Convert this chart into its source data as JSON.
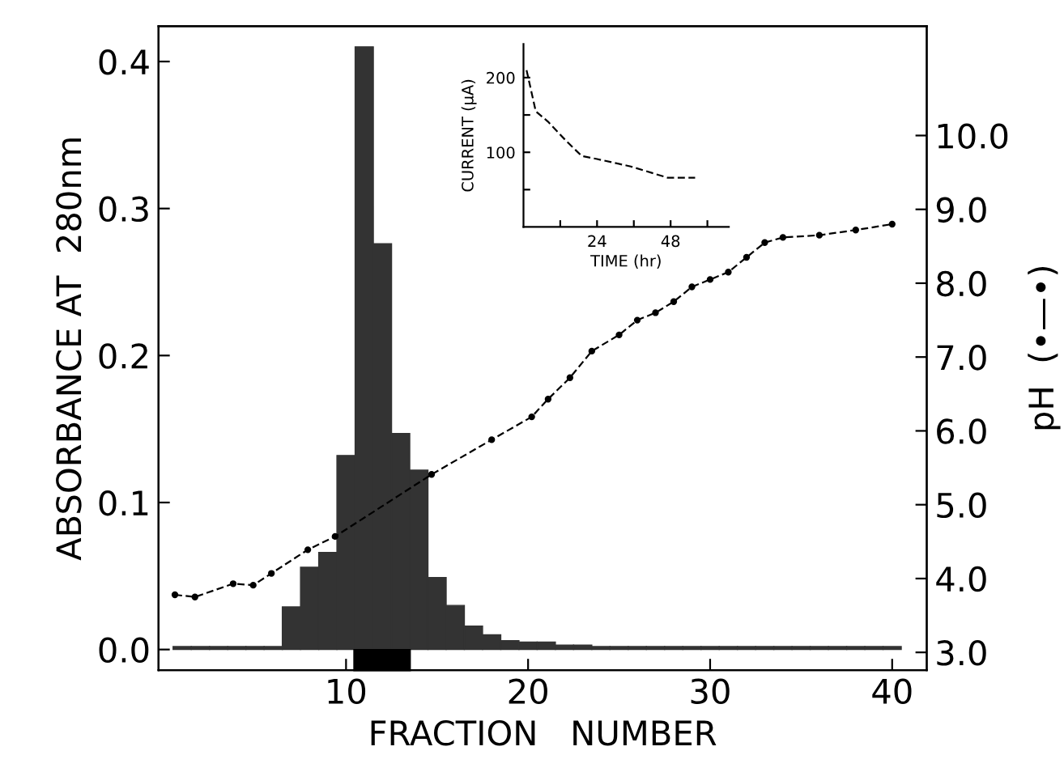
{
  "chart_data": [
    {
      "type": "bar",
      "xlabel": "FRACTION   NUMBER",
      "ylabel": "ABSORBANCE AT  280nm",
      "y2label": "pH  (•—•)",
      "x": [
        1,
        2,
        3,
        4,
        5,
        6,
        7,
        8,
        9,
        10,
        11,
        12,
        13,
        14,
        15,
        16,
        17,
        18,
        19,
        20,
        21,
        22,
        23,
        24,
        25,
        26,
        27,
        28,
        29,
        30,
        31,
        32,
        33,
        34,
        35,
        36,
        37,
        38,
        39,
        40
      ],
      "series": [
        {
          "type": "bar",
          "color": "#333333",
          "values": [
            0.002,
            0.002,
            0.002,
            0.002,
            0.002,
            0.002,
            0.029,
            0.056,
            0.066,
            0.132,
            0.41,
            0.276,
            0.147,
            0.122,
            0.049,
            0.03,
            0.016,
            0.01,
            0.006,
            0.005,
            0.005,
            0.003,
            0.003,
            0.002,
            0.002,
            0.002,
            0.002,
            0.002,
            0.002,
            0.002,
            0.002,
            0.002,
            0.002,
            0.002,
            0.002,
            0.002,
            0.002,
            0.002,
            0.002,
            0.002
          ]
        },
        {
          "type": "line",
          "axis": "y2",
          "color": "#000000",
          "marker": "circle",
          "line_style": "dashed",
          "x": [
            0.6,
            1.7,
            3.8,
            4.9,
            5.9,
            7.9,
            9.4,
            14.7,
            18.0,
            20.2,
            21.1,
            22.3,
            23.5,
            25,
            26,
            27,
            28,
            29,
            30,
            31,
            32,
            33,
            34,
            36,
            38,
            40
          ],
          "values": [
            3.78,
            3.75,
            3.93,
            3.91,
            4.07,
            4.39,
            4.57,
            5.41,
            5.88,
            6.19,
            6.43,
            6.72,
            7.08,
            7.3,
            7.5,
            7.6,
            7.75,
            7.95,
            8.05,
            8.15,
            8.35,
            8.55,
            8.62,
            8.65,
            8.72,
            8.8
          ]
        }
      ],
      "xlim": [
        -0.3,
        41.9
      ],
      "xticks": [
        10,
        20,
        30,
        40
      ],
      "ylim": [
        -0.014,
        0.424
      ],
      "yticks": [
        {
          "value": 0,
          "label": "0.0"
        },
        0.1,
        0.2,
        0.3,
        0.4
      ],
      "y2lim": [
        2.76,
        11.48
      ],
      "y2ticks": [
        {
          "value": 3,
          "label": "3.0"
        },
        {
          "value": 4,
          "label": "4.0"
        },
        {
          "value": 5,
          "label": "5.0"
        },
        {
          "value": 6,
          "label": "6.0"
        },
        {
          "value": 7,
          "label": "7.0"
        },
        {
          "value": 8,
          "label": "8.0"
        },
        {
          "value": 9,
          "label": "9.0"
        },
        {
          "value": 10,
          "label": "10.0"
        }
      ],
      "grid": false,
      "legend": false
    },
    {
      "type": "line",
      "xlabel": "TIME (hr)",
      "ylabel": "CURRENT (μA)",
      "series": [
        {
          "color": "#000000",
          "line_style": "dashed",
          "x": [
            1,
            4,
            8,
            14,
            19,
            24,
            35,
            47,
            56
          ],
          "values": [
            210,
            155,
            141,
            115,
            95,
            91,
            81,
            66,
            66
          ]
        }
      ],
      "xlim": [
        0,
        67
      ],
      "xticks": [
        {
          "value": 12,
          "label": null
        },
        24,
        {
          "value": 36,
          "label": null
        },
        48,
        {
          "value": 60,
          "label": null
        }
      ],
      "ylim": [
        0,
        245
      ],
      "yticks": [
        {
          "value": 50,
          "label": null
        },
        100,
        {
          "value": 150,
          "label": null
        },
        200
      ],
      "grid": false,
      "legend": false
    }
  ]
}
